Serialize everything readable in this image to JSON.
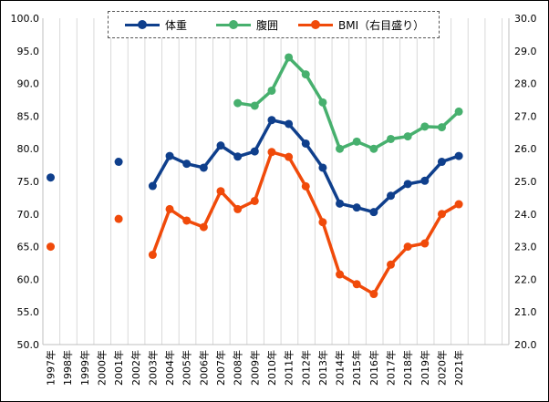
{
  "chart_data": {
    "type": "line",
    "categories": [
      "1997年",
      "1998年",
      "1999年",
      "2000年",
      "2001年",
      "2002年",
      "2003年",
      "2004年",
      "2005年",
      "2006年",
      "2007年",
      "2008年",
      "2009年",
      "2010年",
      "2011年",
      "2012年",
      "2013年",
      "2014年",
      "2015年",
      "2016年",
      "2017年",
      "2018年",
      "2019年",
      "2020年",
      "2021年"
    ],
    "y_left_ticks": [
      "100.0",
      "95.0",
      "90.0",
      "85.0",
      "80.0",
      "75.0",
      "70.0",
      "65.0",
      "60.0",
      "55.0",
      "50.0"
    ],
    "y_right_ticks": [
      "30.0",
      "29.0",
      "28.0",
      "27.0",
      "26.0",
      "25.0",
      "24.0",
      "23.0",
      "22.0",
      "21.0",
      "20.0"
    ],
    "ylim_left": [
      50,
      100
    ],
    "ylim_right": [
      20,
      30
    ],
    "grid": "vertical",
    "legend_position": "top",
    "series": [
      {
        "name": "体重",
        "axis": "left",
        "color": "#0f3f8c",
        "values": [
          75.6,
          null,
          null,
          null,
          78.0,
          null,
          74.3,
          78.9,
          77.7,
          77.1,
          80.5,
          78.8,
          79.6,
          84.4,
          83.8,
          80.8,
          77.1,
          71.6,
          71.0,
          70.3,
          72.8,
          74.6,
          75.1,
          78.0,
          78.9
        ]
      },
      {
        "name": "腹囲",
        "axis": "left",
        "color": "#47b06e",
        "values": [
          null,
          null,
          null,
          null,
          null,
          null,
          null,
          null,
          null,
          null,
          null,
          87.0,
          86.6,
          88.9,
          94.0,
          91.4,
          87.1,
          80.0,
          81.1,
          80.0,
          81.5,
          81.9,
          83.4,
          83.3,
          85.7
        ]
      },
      {
        "name": "BMI（右目盛り）",
        "axis": "right",
        "color": "#f04a0a",
        "values": [
          23.0,
          null,
          null,
          null,
          23.85,
          null,
          22.75,
          24.15,
          23.8,
          23.6,
          24.7,
          24.15,
          24.4,
          25.9,
          25.75,
          24.85,
          23.75,
          22.15,
          21.85,
          21.55,
          22.45,
          23.0,
          23.1,
          24.0,
          24.3
        ]
      }
    ]
  }
}
